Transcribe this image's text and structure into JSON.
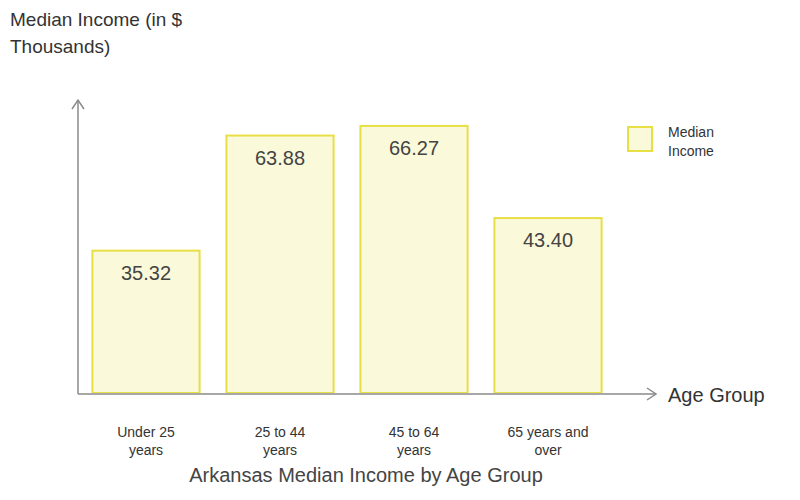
{
  "chart_data": {
    "type": "bar",
    "title": "Arkansas Median Income by Age Group",
    "x_label": "Age Group",
    "y_label": "Median Income (in $ Thousands)",
    "categories": [
      "Under 25 years",
      "25 to 44 years",
      "45 to 64 years",
      "65 years and over"
    ],
    "series": [
      {
        "name": "Median Income",
        "color": "#e8df45",
        "values": [
          35.32,
          63.88,
          66.27,
          43.4
        ],
        "value_labels": [
          "35.32",
          "63.88",
          "66.27",
          "43.40"
        ]
      }
    ],
    "ylim": [
      0,
      72.7
    ],
    "yticks": [],
    "tick_labels": "x",
    "data_labels": true,
    "grid": false,
    "legend": "upper right"
  }
}
